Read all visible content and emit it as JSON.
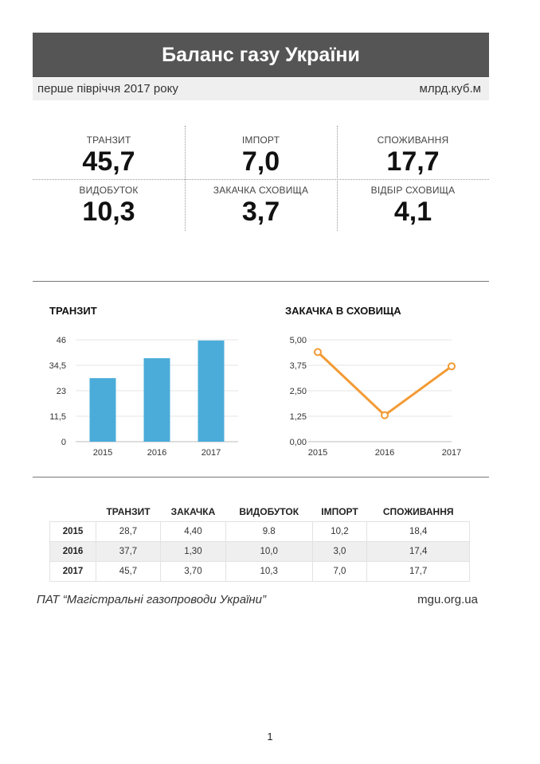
{
  "header": {
    "title": "Баланс газу України",
    "period": "перше півріччя 2017 року",
    "units": "млрд.куб.м"
  },
  "kpis": [
    {
      "label": "ТРАНЗИТ",
      "value": "45,7"
    },
    {
      "label": "ІМПОРТ",
      "value": "7,0"
    },
    {
      "label": "СПОЖИВАННЯ",
      "value": "17,7"
    },
    {
      "label": "ВИДОБУТОК",
      "value": "10,3"
    },
    {
      "label": "ЗАКАЧКА СХОВИЩА",
      "value": "3,7"
    },
    {
      "label": "ВІДБІР СХОВИЩА",
      "value": "4,1"
    }
  ],
  "chart_data": [
    {
      "type": "bar",
      "title": "ТРАНЗИТ",
      "categories": [
        "2015",
        "2016",
        "2017"
      ],
      "values": [
        28.7,
        37.7,
        45.7
      ],
      "ylim": [
        0,
        46
      ],
      "yticks": [
        "0",
        "11,5",
        "23",
        "34,5",
        "46"
      ],
      "color": "#4bacd9"
    },
    {
      "type": "line",
      "title": "ЗАКАЧКА В СХОВИЩА",
      "categories": [
        "2015",
        "2016",
        "2017"
      ],
      "values": [
        4.4,
        1.3,
        3.7
      ],
      "ylim": [
        0,
        5
      ],
      "yticks": [
        "0,00",
        "1,25",
        "2,50",
        "3,75",
        "5,00"
      ],
      "color": "#f39a34"
    }
  ],
  "table": {
    "columns": [
      "ТРАНЗИТ",
      "ЗАКАЧКА",
      "ВИДОБУТОК",
      "ІМПОРТ",
      "СПОЖИВАННЯ"
    ],
    "rows": [
      {
        "year": "2015",
        "cells": [
          "28,7",
          "4,40",
          "9.8",
          "10,2",
          "18,4"
        ]
      },
      {
        "year": "2016",
        "cells": [
          "37,7",
          "1,30",
          "10,0",
          "3,0",
          "17,4"
        ]
      },
      {
        "year": "2017",
        "cells": [
          "45,7",
          "3,70",
          "10,3",
          "7,0",
          "17,7"
        ]
      }
    ]
  },
  "footer": {
    "company": "ПАТ “Магістральні газопроводи України”",
    "website": "mgu.org.ua",
    "page": "1"
  }
}
